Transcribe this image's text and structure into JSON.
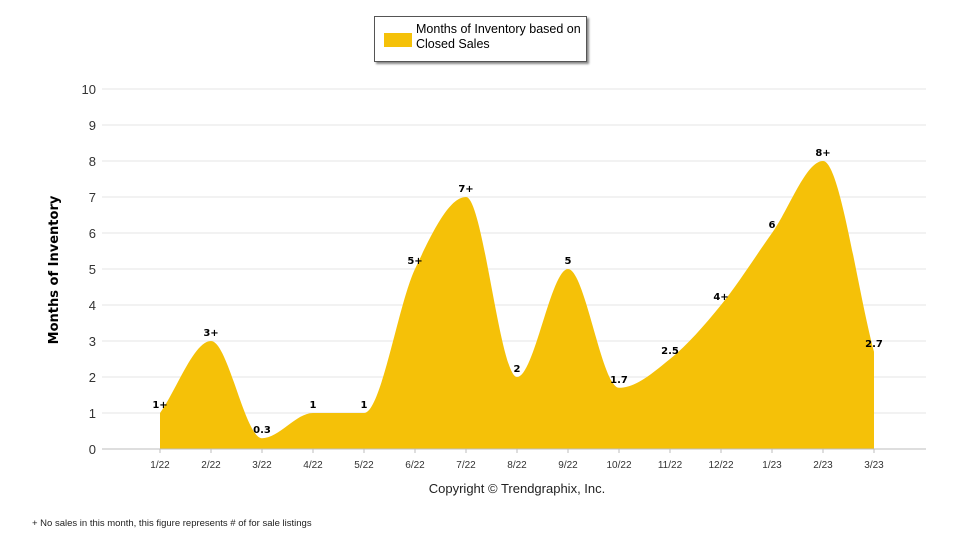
{
  "legend": {
    "label": "Months of Inventory based on Closed Sales"
  },
  "copyright": "Copyright © Trendgraphix, Inc.",
  "footnote": "+ No sales in this month, this figure represents # of for sale listings",
  "colors": {
    "area": "#F5C108",
    "grid": "#e6e6e6",
    "axis": "#bdbdbd",
    "text": "#000000"
  },
  "chart_data": {
    "type": "area",
    "ylabel": "Months of Inventory",
    "xlabel": "",
    "ylim": [
      0,
      10
    ],
    "yticks": [
      0,
      1,
      2,
      3,
      4,
      5,
      6,
      7,
      8,
      9,
      10
    ],
    "grid": true,
    "legend_position": "top-center",
    "categories": [
      "1/22",
      "2/22",
      "3/22",
      "4/22",
      "5/22",
      "6/22",
      "7/22",
      "8/22",
      "9/22",
      "10/22",
      "11/22",
      "12/22",
      "1/23",
      "2/23",
      "3/23"
    ],
    "series": [
      {
        "name": "Months of Inventory based on Closed Sales",
        "values": [
          1,
          3,
          0.3,
          1,
          1,
          5,
          7,
          2,
          5,
          1.7,
          2.5,
          4,
          6,
          8,
          2.7
        ],
        "labels": [
          "1+",
          "3+",
          "0.3",
          "1",
          "1",
          "5+",
          "7+",
          "2",
          "5",
          "1.7",
          "2.5",
          "4+",
          "6",
          "8+",
          "2.7"
        ]
      }
    ]
  }
}
